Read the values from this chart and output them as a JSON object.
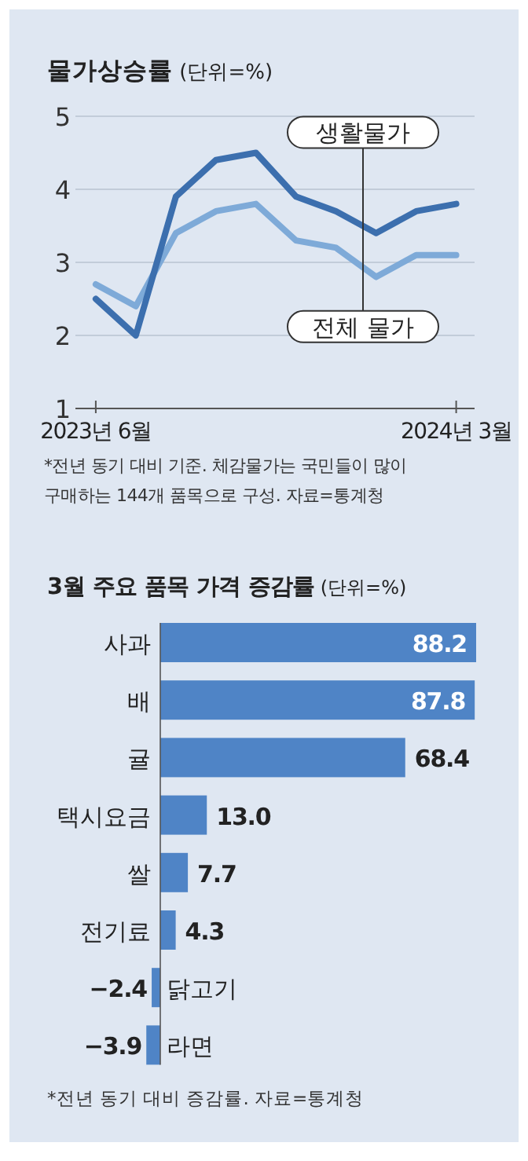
{
  "chart_data": [
    {
      "type": "line",
      "title": "**물가상승률** (단위=%)",
      "x": [
        "2023-06",
        "2023-07",
        "2023-08",
        "2023-09",
        "2023-10",
        "2023-11",
        "2023-12",
        "2024-01",
        "2024-02",
        "2024-03"
      ],
      "series": [
        {
          "name": "생활물가",
          "color": "#3c6fae",
          "values": [
            2.5,
            2.0,
            3.9,
            4.4,
            4.5,
            3.9,
            3.7,
            3.4,
            3.7,
            3.8
          ]
        },
        {
          "name": "전체 물가",
          "color": "#7eaad8",
          "values": [
            2.7,
            2.4,
            3.4,
            3.7,
            3.8,
            3.3,
            3.2,
            2.8,
            3.1,
            3.1
          ]
        }
      ],
      "xlim": [
        "2023-05-16",
        "2024-03-15"
      ],
      "xticks": [
        {
          "value": "2023-06",
          "label": "2023년 6월"
        },
        {
          "value": "2024-03",
          "label": "2024년 3월"
        }
      ],
      "ylim": [
        1,
        5
      ],
      "yticks": [
        1,
        2,
        3,
        4,
        5
      ],
      "grid": "y",
      "line_style": "solid",
      "annotations": [
        "*전년 동기 대비 기준. 체감물가는 국민들이 많이 구매하는 144개 품목으로 구성. 자료=통계청"
      ]
    },
    {
      "type": "bar",
      "orientation": "horizontal",
      "title": "**3월 주요 품목 가격 증감률** (단위=%)",
      "categories": [
        "사과",
        "배",
        "귤",
        "택시요금",
        "쌀",
        "전기료",
        "닭고기",
        "라면"
      ],
      "values": [
        88.2,
        87.8,
        68.4,
        13.0,
        7.7,
        4.3,
        -2.4,
        -3.9
      ],
      "value_labels": [
        "88.2",
        "87.8",
        "68.4",
        "13.0",
        "7.7",
        "4.3",
        "−2.4",
        "−3.9"
      ],
      "color": "#4f84c6",
      "annotations": [
        "*전년 동기 대비 증감률. 자료=통계청"
      ]
    }
  ]
}
